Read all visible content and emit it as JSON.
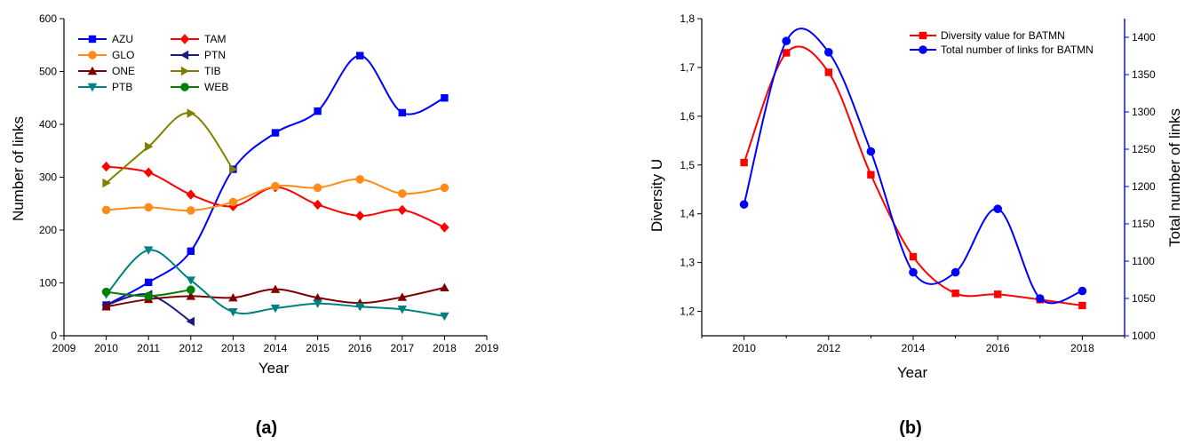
{
  "chart_data": [
    {
      "type": "line",
      "caption": "(a)",
      "xlabel": "Year",
      "ylabel": "Number of links",
      "xlim": [
        2009,
        2019
      ],
      "ylim": [
        0,
        600
      ],
      "xticks": [
        2009,
        2010,
        2011,
        2012,
        2013,
        2014,
        2015,
        2016,
        2017,
        2018,
        2019
      ],
      "yticks": [
        0,
        100,
        200,
        300,
        400,
        500,
        600
      ],
      "legend": "top-left, two columns",
      "series": [
        {
          "name": "AZU",
          "color": "#0000ff",
          "marker": "square",
          "x": [
            2010,
            2011,
            2012,
            2013,
            2014,
            2015,
            2016,
            2017,
            2018
          ],
          "y": [
            58,
            101,
            160,
            315,
            384,
            425,
            530,
            422,
            450
          ]
        },
        {
          "name": "TAM",
          "color": "#ff0000",
          "marker": "diamond",
          "x": [
            2010,
            2011,
            2012,
            2013,
            2014,
            2015,
            2016,
            2017,
            2018
          ],
          "y": [
            320,
            309,
            267,
            245,
            281,
            248,
            227,
            238,
            205
          ]
        },
        {
          "name": "GLO",
          "color": "#ff8c1a",
          "marker": "circle",
          "x": [
            2010,
            2011,
            2012,
            2013,
            2014,
            2015,
            2016,
            2017,
            2018
          ],
          "y": [
            238,
            243,
            237,
            253,
            283,
            280,
            296,
            269,
            280
          ]
        },
        {
          "name": "PTN",
          "color": "#1a1a80",
          "marker": "triangle-left",
          "x": [
            2010,
            2011,
            2012
          ],
          "y": [
            58,
            78,
            27
          ]
        },
        {
          "name": "ONE",
          "color": "#800000",
          "marker": "triangle-up",
          "x": [
            2010,
            2011,
            2012,
            2013,
            2014,
            2015,
            2016,
            2017,
            2018
          ],
          "y": [
            55,
            69,
            75,
            72,
            88,
            72,
            62,
            73,
            91
          ]
        },
        {
          "name": "TIB",
          "color": "#808000",
          "marker": "triangle-right",
          "x": [
            2010,
            2011,
            2012,
            2013
          ],
          "y": [
            289,
            358,
            421,
            315
          ]
        },
        {
          "name": "PTB",
          "color": "#008080",
          "marker": "triangle-down",
          "x": [
            2010,
            2011,
            2012,
            2013,
            2014,
            2015,
            2016,
            2017,
            2018
          ],
          "y": [
            78,
            162,
            105,
            45,
            52,
            61,
            55,
            50,
            37
          ]
        },
        {
          "name": "WEB",
          "color": "#008000",
          "marker": "circle",
          "x": [
            2010,
            2011,
            2012
          ],
          "y": [
            83,
            75,
            87
          ]
        }
      ]
    },
    {
      "type": "line",
      "caption": "(b)",
      "xlabel": "Year",
      "ylabel": "Diversity U",
      "ylabel_right": "Total number of links",
      "xlim": [
        2009,
        2019
      ],
      "ylim": [
        1.15,
        1.8
      ],
      "ylim_right": [
        1000,
        1425
      ],
      "xticks": [
        2010,
        2012,
        2014,
        2016,
        2018
      ],
      "yticks": [
        "1,2",
        "1,3",
        "1,4",
        "1,5",
        "1,6",
        "1,7",
        "1,8"
      ],
      "yticks_right": [
        1000,
        1050,
        1100,
        1150,
        1200,
        1250,
        1300,
        1350,
        1400
      ],
      "legend": "top-right",
      "series": [
        {
          "name": "Diversity value for BATMN",
          "axis": "left",
          "color": "#ff0000",
          "marker": "square",
          "x": [
            2010,
            2011,
            2012,
            2013,
            2014,
            2015,
            2016,
            2017,
            2018
          ],
          "y": [
            1.505,
            1.73,
            1.69,
            1.48,
            1.312,
            1.237,
            1.235,
            1.224,
            1.212
          ]
        },
        {
          "name": "Total number of links for BATMN",
          "axis": "right",
          "color": "#0000ff",
          "marker": "circle",
          "x": [
            2010,
            2011,
            2012,
            2013,
            2014,
            2015,
            2016,
            2017,
            2018
          ],
          "y": [
            1176,
            1395,
            1380,
            1247,
            1085,
            1085,
            1170,
            1050,
            1060
          ]
        }
      ]
    }
  ]
}
